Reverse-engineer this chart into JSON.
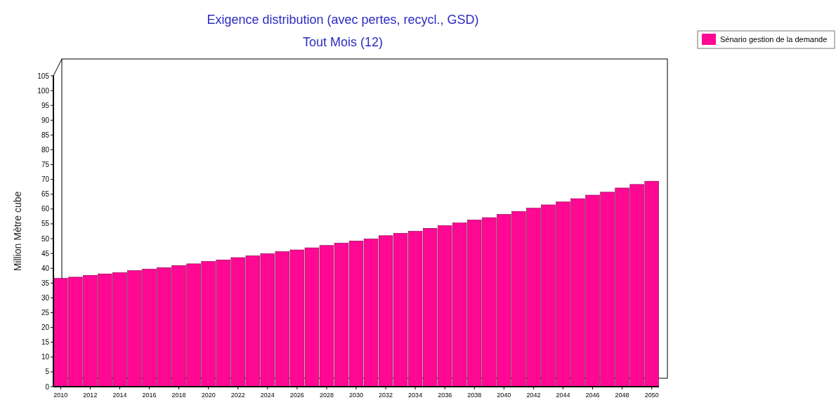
{
  "chart_data": {
    "type": "bar",
    "title": "Exigence distribution (avec pertes, recycl., GSD)",
    "subtitle": "Tout Mois (12)",
    "ylabel": "Million Mètre cube",
    "categories": [
      "2010",
      null,
      "2012",
      null,
      "2014",
      null,
      "2016",
      null,
      "2018",
      null,
      "2020",
      null,
      "2022",
      null,
      "2024",
      null,
      "2026",
      null,
      "2028",
      null,
      "2030",
      null,
      "2032",
      null,
      "2034",
      null,
      "2036",
      null,
      "2038",
      null,
      "2040",
      null,
      "2042",
      null,
      "2044",
      null,
      "2046",
      null,
      "2048",
      null,
      "2050"
    ],
    "series": [
      {
        "name": "Sénario gestion de la demande",
        "color": "#ff0894",
        "values": [
          36.6,
          37.0,
          37.6,
          38.1,
          38.5,
          39.2,
          39.7,
          40.2,
          40.9,
          41.5,
          42.3,
          42.8,
          43.6,
          44.2,
          44.9,
          45.6,
          46.2,
          46.9,
          47.7,
          48.5,
          49.2,
          49.9,
          51.0,
          51.8,
          52.5,
          53.5,
          54.4,
          55.3,
          56.3,
          57.1,
          58.2,
          59.2,
          60.3,
          61.4,
          62.4,
          63.5,
          64.7,
          65.7,
          67.1,
          68.3,
          69.4
        ]
      }
    ],
    "ylim": [
      0,
      105
    ],
    "yticks": [
      0,
      5,
      10,
      15,
      20,
      25,
      30,
      35,
      40,
      45,
      50,
      55,
      60,
      65,
      70,
      75,
      80,
      85,
      90,
      95,
      100,
      105
    ],
    "grid": false,
    "legend": "top right"
  }
}
